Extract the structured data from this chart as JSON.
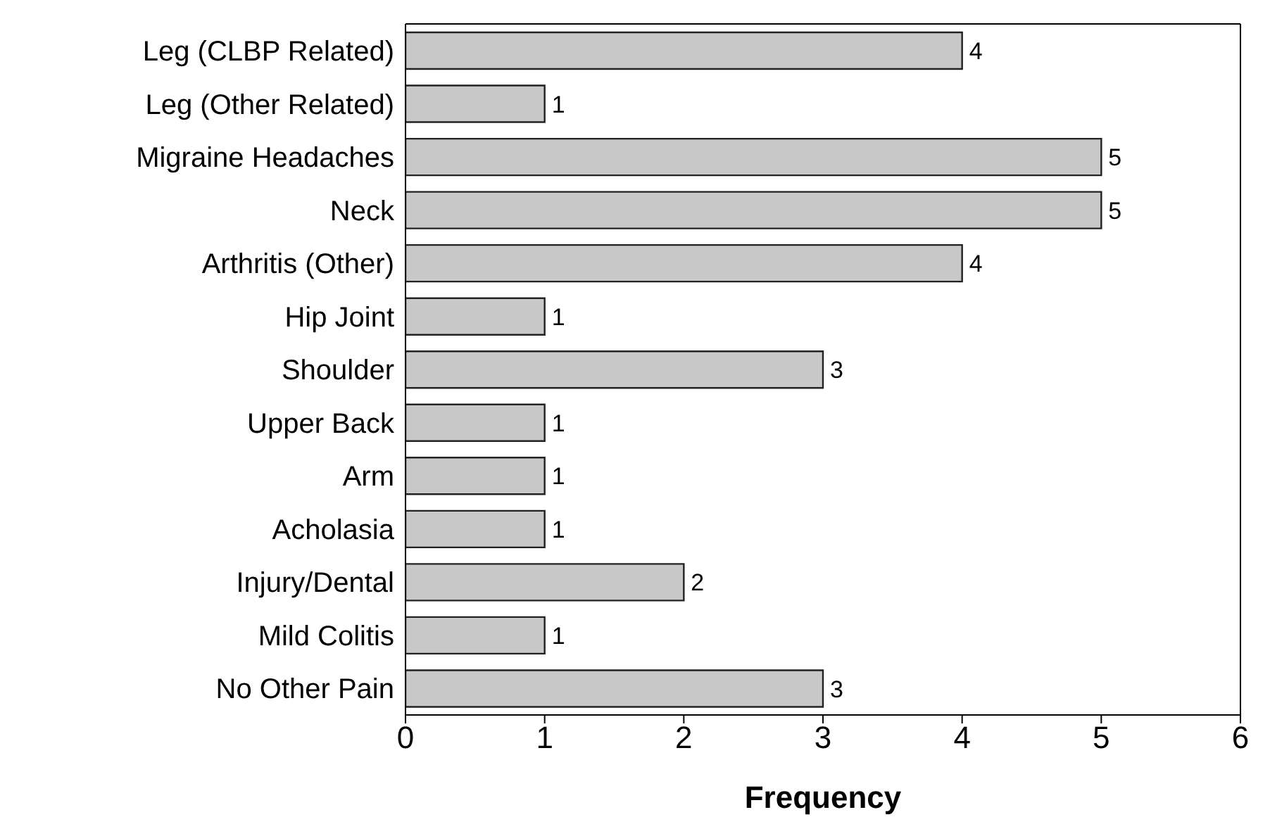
{
  "chart_data": {
    "type": "bar",
    "orientation": "horizontal",
    "xlabel": "Frequency",
    "categories": [
      "Leg (CLBP Related)",
      "Leg (Other Related)",
      "Migraine Headaches",
      "Neck",
      "Arthritis (Other)",
      "Hip Joint",
      "Shoulder",
      "Upper Back",
      "Arm",
      "Acholasia",
      "Injury/Dental",
      "Mild Colitis",
      "No Other Pain"
    ],
    "values": [
      4,
      1,
      5,
      5,
      4,
      1,
      3,
      1,
      1,
      1,
      2,
      1,
      3
    ],
    "color": "#c8c8c8",
    "xlim": [
      0,
      6
    ],
    "xticks": [
      0,
      1,
      2,
      3,
      4,
      5,
      6
    ],
    "data_labels": true,
    "grid": false
  }
}
